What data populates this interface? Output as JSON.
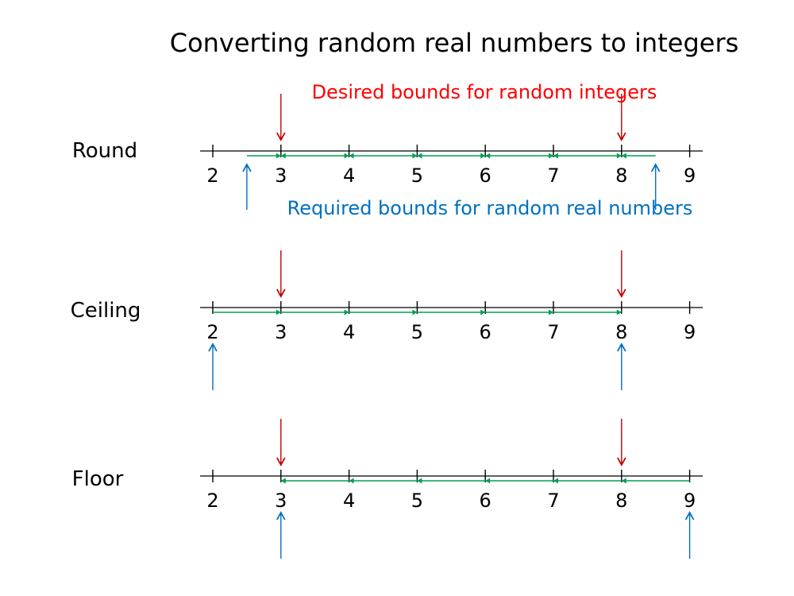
{
  "title": "Converting random real numbers to integers",
  "desired_label": "Desired bounds for random integers",
  "required_label": "Required bounds for random real numbers",
  "tick_values": [
    2,
    3,
    4,
    5,
    6,
    7,
    8,
    9
  ],
  "colors": {
    "axis": "#000000",
    "desired": "#c00000",
    "desired_text": "#ff0000",
    "required": "#0070c0",
    "interval": "#00a050"
  },
  "rows": [
    {
      "label": "Round",
      "method": "round",
      "desired_bounds": [
        3,
        8
      ],
      "required_bounds": [
        2.5,
        8.5
      ],
      "arrow_direction": "both"
    },
    {
      "label": "Ceiling",
      "method": "ceiling",
      "desired_bounds": [
        3,
        8
      ],
      "required_bounds": [
        2,
        8
      ],
      "arrow_direction": "right"
    },
    {
      "label": "Floor",
      "method": "floor",
      "desired_bounds": [
        3,
        8
      ],
      "required_bounds": [
        3,
        9
      ],
      "arrow_direction": "left"
    }
  ]
}
